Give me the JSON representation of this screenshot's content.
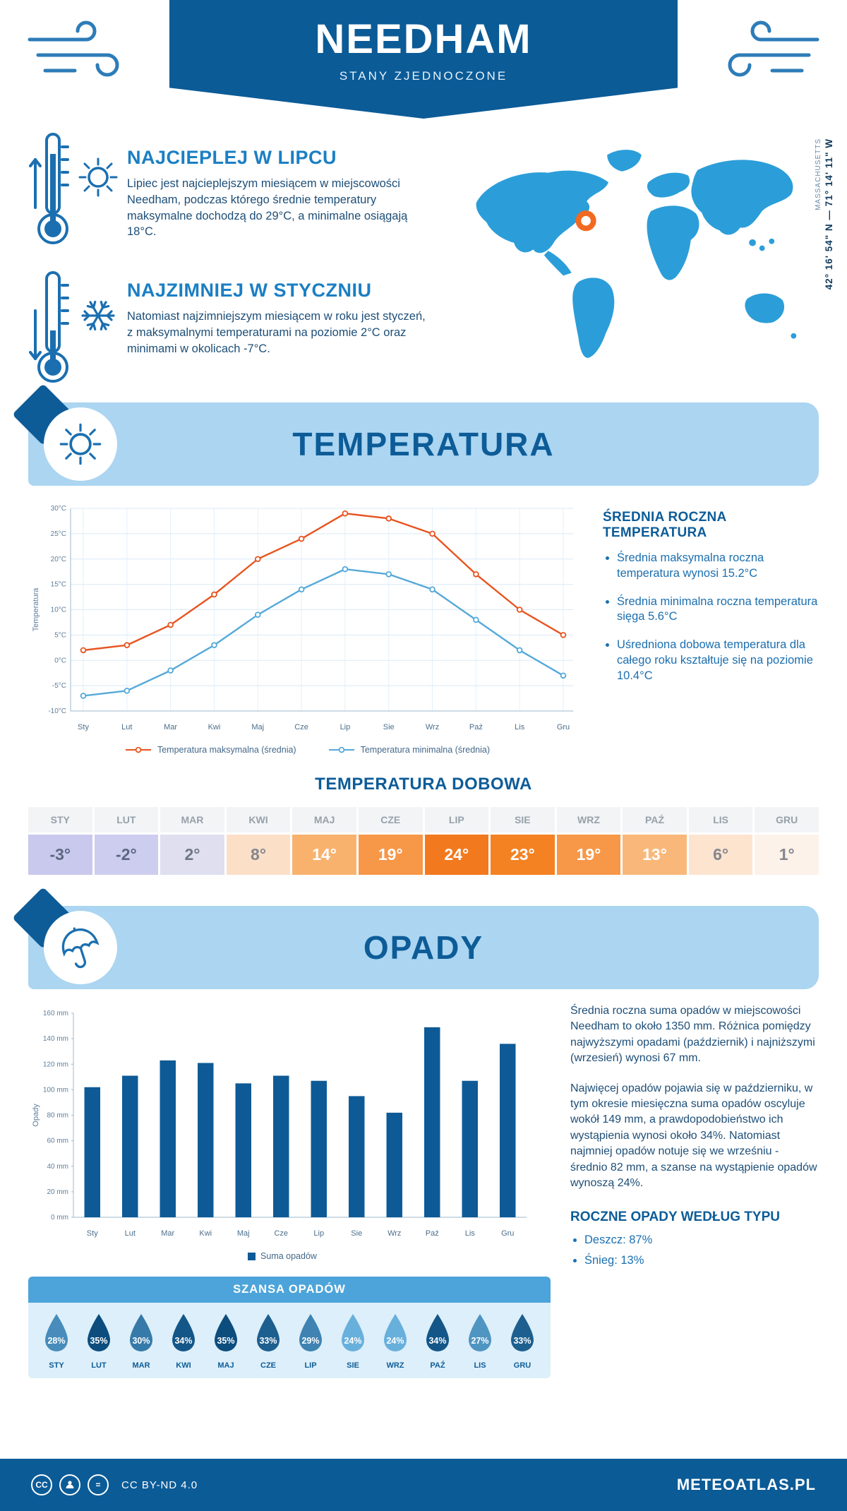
{
  "header": {
    "title": "NEEDHAM",
    "subtitle": "STANY ZJEDNOCZONE"
  },
  "location": {
    "coordinates": "42° 16' 54\" N — 71° 14' 11\" W",
    "region": "MASSACHUSETTS"
  },
  "intro": {
    "warm": {
      "heading": "NAJCIEPLEJ W LIPCU",
      "text": "Lipiec jest najcieplejszym miesiącem w miejscowości Needham, podczas którego średnie temperatury maksymalne dochodzą do 29°C, a minimalne osiągają 18°C."
    },
    "cold": {
      "heading": "NAJZIMNIEJ W STYCZNIU",
      "text": "Natomiast najzimniejszym miesiącem w roku jest styczeń, z maksymalnymi temperaturami na poziomie 2°C oraz minimami w okolicach -7°C."
    }
  },
  "temperature_section": {
    "title": "TEMPERATURA",
    "annual": {
      "heading": "ŚREDNIA ROCZNA TEMPERATURA",
      "bullets": [
        "Średnia maksymalna roczna temperatura wynosi 15.2°C",
        "Średnia minimalna roczna temperatura sięga 5.6°C",
        "Uśredniona dobowa temperatura dla całego roku kształtuje się na poziomie 10.4°C"
      ]
    },
    "daily": {
      "heading": "TEMPERATURA DOBOWA",
      "months": [
        "STY",
        "LUT",
        "MAR",
        "KWI",
        "MAJ",
        "CZE",
        "LIP",
        "SIE",
        "WRZ",
        "PAŹ",
        "LIS",
        "GRU"
      ],
      "values": [
        "-3°",
        "-2°",
        "2°",
        "8°",
        "14°",
        "19°",
        "24°",
        "23°",
        "19°",
        "13°",
        "6°",
        "1°"
      ],
      "cell_bg": [
        "#c9c9ed",
        "#cdcdef",
        "#dfdff0",
        "#fcdfc7",
        "#f9b26d",
        "#f79748",
        "#f2791e",
        "#f48222",
        "#f79748",
        "#f9b87a",
        "#fce4cf",
        "#fdf2e9"
      ],
      "cell_fg": [
        "#5d6680",
        "#5d6680",
        "#6f7787",
        "#83878f",
        "#ffffff",
        "#ffffff",
        "#ffffff",
        "#ffffff",
        "#ffffff",
        "#ffffff",
        "#83878f",
        "#83878f"
      ]
    }
  },
  "precipitation_section": {
    "title": "OPADY",
    "summary_p1": "Średnia roczna suma opadów w miejscowości Needham to około 1350 mm. Różnica pomiędzy najwyższymi opadami (październik) i najniższymi (wrzesień) wynosi 67 mm.",
    "summary_p2": "Najwięcej opadów pojawia się w październiku, w tym okresie miesięczna suma opadów oscyluje wokół 149 mm, a prawdopodobieństwo ich wystąpienia wynosi około 34%. Natomiast najmniej opadów notuje się we wrześniu - średnio 82 mm, a szanse na wystąpienie opadów wynoszą 24%.",
    "chance": {
      "heading": "SZANSA OPADÓW",
      "months": [
        "STY",
        "LUT",
        "MAR",
        "KWI",
        "MAJ",
        "CZE",
        "LIP",
        "SIE",
        "WRZ",
        "PAŹ",
        "LIS",
        "GRU"
      ],
      "percents": [
        28,
        35,
        30,
        34,
        35,
        33,
        29,
        24,
        24,
        34,
        27,
        33
      ],
      "drop_color_dark": "#0c4d7e",
      "drop_color_light": "#68b0dc"
    },
    "type": {
      "heading": "ROCZNE OPADY WEDŁUG TYPU",
      "bullets": [
        "Deszcz: 87%",
        "Śnieg: 13%"
      ]
    }
  },
  "chart_data": [
    {
      "type": "line",
      "title": "Temperatura",
      "x": [
        "Sty",
        "Lut",
        "Mar",
        "Kwi",
        "Maj",
        "Cze",
        "Lip",
        "Sie",
        "Wrz",
        "Paź",
        "Lis",
        "Gru"
      ],
      "xlabel": "",
      "ylabel": "Temperatura",
      "ylim": [
        -10,
        30
      ],
      "ytick_step": 5,
      "ytick_suffix": "°C",
      "grid": true,
      "legend_position": "bottom",
      "series": [
        {
          "name": "Temperatura maksymalna (średnia)",
          "color": "#e8541f",
          "values": [
            2,
            3,
            7,
            13,
            20,
            24,
            29,
            28,
            25,
            17,
            10,
            5
          ]
        },
        {
          "name": "Temperatura minimalna (średnia)",
          "color": "#55a9d9",
          "values": [
            -7,
            -6,
            -2,
            3,
            9,
            14,
            18,
            17,
            14,
            8,
            2,
            -3
          ]
        }
      ]
    },
    {
      "type": "bar",
      "title": "Suma opadów",
      "x": [
        "Sty",
        "Lut",
        "Mar",
        "Kwi",
        "Maj",
        "Cze",
        "Lip",
        "Sie",
        "Wrz",
        "Paź",
        "Lis",
        "Gru"
      ],
      "xlabel": "",
      "ylabel": "Opady",
      "ylim": [
        0,
        160
      ],
      "ytick_step": 20,
      "ytick_suffix": " mm",
      "grid": false,
      "legend_position": "bottom",
      "series": [
        {
          "name": "Suma opadów",
          "color": "#0e5a96",
          "values": [
            102,
            111,
            123,
            121,
            105,
            111,
            107,
            95,
            82,
            149,
            107,
            136
          ]
        }
      ]
    }
  ],
  "footer": {
    "license": "CC BY-ND 4.0",
    "brand": "METEOATLAS.PL"
  },
  "colors": {
    "primary": "#0b5b97",
    "banner_bg": "#abd5f1",
    "heading_blue": "#1b7fc4",
    "body_text": "#1d4e77",
    "max_line": "#e8541f",
    "min_line": "#55a9d9",
    "bar": "#0e5a96",
    "map_blue": "#2b9ed9",
    "marker_orange": "#f26a21"
  }
}
